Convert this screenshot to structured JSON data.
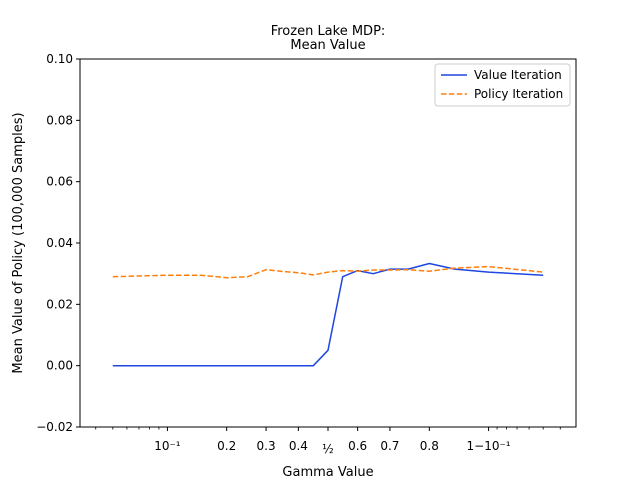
{
  "chart_data": {
    "type": "line",
    "title": [
      "Frozen Lake MDP:",
      "Mean Value"
    ],
    "xlabel": "Gamma Value",
    "ylabel": "Mean Value of Policy (100,000 Samples)",
    "x_scale": "logit",
    "ylim": [
      -0.02,
      0.1
    ],
    "y_ticks": [
      -0.02,
      0.0,
      0.02,
      0.04,
      0.06,
      0.08,
      0.1
    ],
    "y_tick_labels": [
      "−0.02",
      "0.00",
      "0.02",
      "0.04",
      "0.06",
      "0.08",
      "0.10"
    ],
    "x_ticks": [
      0.1,
      0.2,
      0.3,
      0.4,
      0.5,
      0.6,
      0.7,
      0.8,
      0.9
    ],
    "x_tick_labels": [
      "10⁻¹",
      "0.2",
      "0.3",
      "0.4",
      "½",
      "0.6",
      "0.7",
      "0.8",
      "1−10⁻¹"
    ],
    "grid": false,
    "legend_position": "top-right",
    "x": [
      0.05,
      0.1,
      0.15,
      0.2,
      0.25,
      0.3,
      0.35,
      0.4,
      0.45,
      0.5,
      0.55,
      0.6,
      0.65,
      0.7,
      0.75,
      0.8,
      0.85,
      0.9,
      0.95
    ],
    "series": [
      {
        "name": "Value Iteration",
        "color": "#1f46e0",
        "dash": "solid",
        "values": [
          0.0,
          0.0,
          0.0,
          0.0,
          0.0,
          0.0,
          0.0,
          0.0,
          0.0,
          0.005,
          0.029,
          0.031,
          0.03,
          0.0315,
          0.0315,
          0.0333,
          0.0315,
          0.0305,
          0.0295
        ]
      },
      {
        "name": "Policy Iteration",
        "color": "#ff7f0e",
        "dash": "dashed",
        "values": [
          0.029,
          0.0295,
          0.0295,
          0.0287,
          0.029,
          0.0313,
          0.0307,
          0.0303,
          0.0296,
          0.0305,
          0.031,
          0.0308,
          0.0312,
          0.0312,
          0.0313,
          0.0308,
          0.0318,
          0.0323,
          0.0305
        ]
      }
    ]
  }
}
